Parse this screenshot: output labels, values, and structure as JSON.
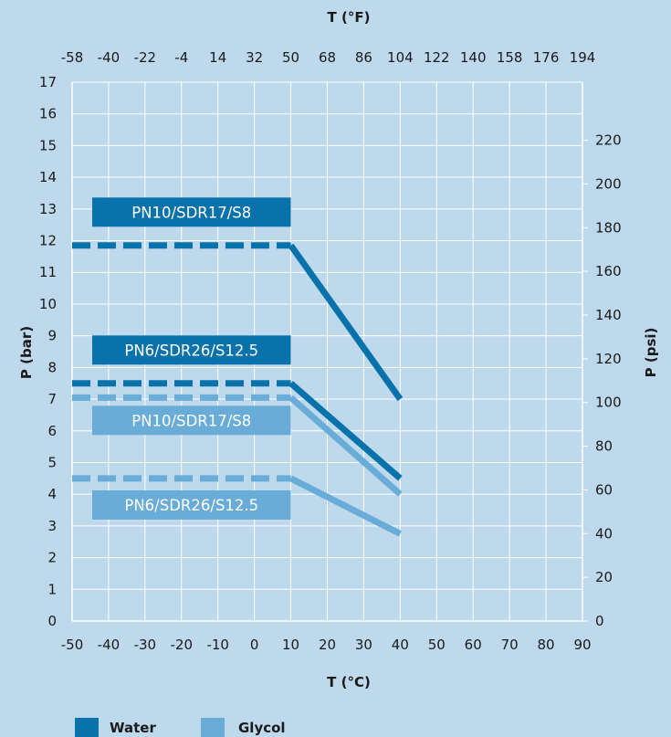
{
  "colors": {
    "water": "#0a72ab",
    "glycol": "#6aacd8",
    "background": "#bed9ec",
    "grid": "#ffffff"
  },
  "chart_data": {
    "type": "line",
    "xlabel": "T (°C)",
    "ylabel": "P (bar)",
    "x2label": "T (°F)",
    "y2label": "P (psi)",
    "xlim": [
      -50,
      90
    ],
    "ylim": [
      0,
      17
    ],
    "x_ticks": [
      -50,
      -40,
      -30,
      -20,
      -10,
      0,
      10,
      20,
      30,
      40,
      50,
      60,
      70,
      80,
      90
    ],
    "y_ticks": [
      0,
      1,
      2,
      3,
      4,
      5,
      6,
      7,
      8,
      9,
      10,
      11,
      12,
      13,
      14,
      15,
      16,
      17
    ],
    "x2_ticks": [
      -58,
      -40,
      -22,
      -4,
      14,
      32,
      50,
      68,
      86,
      104,
      122,
      140,
      158,
      176,
      194
    ],
    "y2_ticks": [
      0,
      20,
      40,
      60,
      80,
      100,
      120,
      140,
      160,
      180,
      200,
      220
    ],
    "grid": true,
    "legend": [
      {
        "label": "Water",
        "color": "#0a72ab"
      },
      {
        "label": "Glycol",
        "color": "#6aacd8"
      }
    ],
    "series": [
      {
        "label": "PN10/SDR17/S8",
        "medium": "water",
        "color": "#0a72ab",
        "dashed_until": 10,
        "x": [
          -50,
          10,
          40
        ],
        "y": [
          11.85,
          11.85,
          7.0
        ]
      },
      {
        "label": "PN6/SDR26/S12.5",
        "medium": "water",
        "color": "#0a72ab",
        "dashed_until": 10,
        "x": [
          -50,
          10,
          40
        ],
        "y": [
          7.5,
          7.5,
          4.5
        ]
      },
      {
        "label": "PN10/SDR17/S8",
        "medium": "glycol",
        "color": "#6aacd8",
        "dashed_until": 10,
        "x": [
          -50,
          10,
          40
        ],
        "y": [
          7.05,
          7.05,
          4.0
        ]
      },
      {
        "label": "PN6/SDR26/S12.5",
        "medium": "glycol",
        "color": "#6aacd8",
        "dashed_until": 10,
        "x": [
          -50,
          10,
          40
        ],
        "y": [
          4.5,
          4.5,
          2.75
        ]
      }
    ]
  }
}
